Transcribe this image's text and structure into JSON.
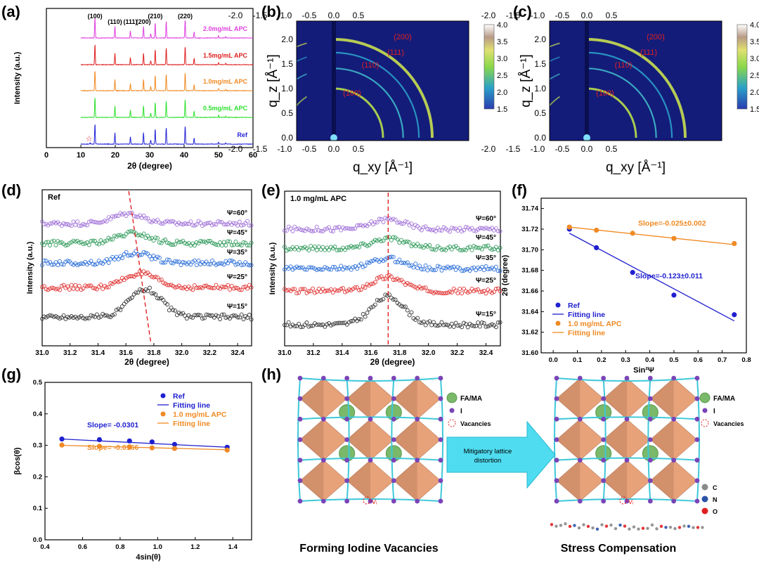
{
  "panel_labels": {
    "a": "(a)",
    "b": "(b)",
    "c": "(c)",
    "d": "(d)",
    "e": "(e)",
    "f": "(f)",
    "g": "(g)",
    "h": "(h)"
  },
  "chart_data": [
    {
      "panel": "a",
      "type": "line",
      "xlabel": "2θ (degree)",
      "ylabel": "Intensity (a.u.)",
      "xlim": [
        0,
        60
      ],
      "xticks": [
        0,
        10,
        20,
        30,
        40,
        50,
        60
      ],
      "peak_labels": [
        {
          "x": 14.1,
          "label": "(100)"
        },
        {
          "x": 19.9,
          "label": "(110)"
        },
        {
          "x": 24.4,
          "label": "(111)"
        },
        {
          "x": 28.2,
          "label": "(200)"
        },
        {
          "x": 31.6,
          "label": "(210)"
        },
        {
          "x": 40.3,
          "label": "(220)"
        }
      ],
      "peaks": [
        {
          "x": 12.7,
          "h": 0.08
        },
        {
          "x": 14.1,
          "h": 1.0
        },
        {
          "x": 19.9,
          "h": 0.55
        },
        {
          "x": 24.4,
          "h": 0.35
        },
        {
          "x": 28.2,
          "h": 0.55
        },
        {
          "x": 30.3,
          "h": 0.2
        },
        {
          "x": 31.6,
          "h": 0.75
        },
        {
          "x": 34.8,
          "h": 0.8
        },
        {
          "x": 40.3,
          "h": 0.9
        },
        {
          "x": 42.9,
          "h": 0.3
        },
        {
          "x": 50.0,
          "h": 0.1
        },
        {
          "x": 52.1,
          "h": 0.06
        }
      ],
      "star_annotation": {
        "x": 12.7,
        "label": "☆"
      },
      "series": [
        {
          "name": "Ref",
          "color": "#2424d8"
        },
        {
          "name": "0.5mg/mL APC",
          "color": "#2ee02e"
        },
        {
          "name": "1.0mg/mL APC",
          "color": "#f08a24"
        },
        {
          "name": "1.5mg/mL APC",
          "color": "#e02020"
        },
        {
          "name": "2.0mg/mL APC",
          "color": "#e040e0"
        }
      ]
    },
    {
      "panel": "b",
      "type": "heatmap",
      "xlabel": "q_xy [Å⁻¹]",
      "ylabel": "q_z [Å⁻¹]",
      "xticks": [
        "0.5",
        "0.0",
        "-0.5",
        "-1.0",
        "-1.5",
        "-2.0"
      ],
      "yticks": [
        "0.0",
        "0.5",
        "1.0",
        "1.5",
        "2.0"
      ],
      "colorbar": [
        "4.0",
        "3.5",
        "3.0",
        "2.5",
        "2.0",
        "1.5"
      ],
      "ring_labels": [
        "(100)",
        "(110)",
        "(111)",
        "(200)"
      ],
      "rings_q": [
        1.0,
        1.41,
        1.73,
        2.0
      ]
    },
    {
      "panel": "c",
      "type": "heatmap",
      "xlabel": "q_xy [Å⁻¹]",
      "ylabel": "q_z [Å⁻¹]",
      "xticks": [
        "0.5",
        "0.0",
        "-0.5",
        "-1.0",
        "-1.5",
        "-2.0"
      ],
      "yticks": [
        "0.0",
        "0.5",
        "1.0",
        "1.5",
        "2.0"
      ],
      "colorbar": [
        "4.0",
        "3.5",
        "3.0",
        "2.5",
        "2.0",
        "1.5"
      ],
      "ring_labels": [
        "(100)",
        "(110)",
        "(111)",
        "(200)"
      ],
      "rings_q": [
        1.0,
        1.41,
        1.73,
        2.0
      ]
    },
    {
      "panel": "d",
      "type": "scatter",
      "title": "Ref",
      "xlabel": "2θ (degree)",
      "ylabel": "Intensity (a.u.)",
      "xlim": [
        31.0,
        32.5
      ],
      "xticks": [
        "31.0",
        "31.2",
        "31.4",
        "31.6",
        "31.8",
        "32.0",
        "32.2",
        "32.4"
      ],
      "series": [
        {
          "name": "Ψ=15°",
          "color": "#333333",
          "center": 31.74
        },
        {
          "name": "Ψ=25°",
          "color": "#e03030",
          "center": 31.7
        },
        {
          "name": "Ψ=35°",
          "color": "#2a6ed8",
          "center": 31.67
        },
        {
          "name": "Ψ=45°",
          "color": "#2e9a5a",
          "center": 31.65
        },
        {
          "name": "Ψ=60°",
          "color": "#a070d8",
          "center": 31.62
        }
      ],
      "guide_line": {
        "x_top": 31.62,
        "x_bottom": 31.78
      }
    },
    {
      "panel": "e",
      "type": "scatter",
      "title": "1.0 mg/mL APC",
      "xlabel": "2θ (degree)",
      "ylabel": "Intensity (a.u.)",
      "xlim": [
        31.0,
        32.5
      ],
      "xticks": [
        "31.0",
        "31.2",
        "31.4",
        "31.6",
        "31.8",
        "32.0",
        "32.2",
        "32.4"
      ],
      "series": [
        {
          "name": "Ψ=15°",
          "color": "#333333",
          "center": 31.72
        },
        {
          "name": "Ψ=25°",
          "color": "#e03030",
          "center": 31.72
        },
        {
          "name": "Ψ=35°",
          "color": "#2a6ed8",
          "center": 31.72
        },
        {
          "name": "Ψ=45°",
          "color": "#2e9a5a",
          "center": 31.72
        },
        {
          "name": "Ψ=60°",
          "color": "#a070d8",
          "center": 31.72
        }
      ],
      "guide_line": {
        "x_top": 31.72,
        "x_bottom": 31.72
      }
    },
    {
      "panel": "f",
      "type": "scatter",
      "xlabel": "Sin²Ψ",
      "ylabel": "2θ (degree)",
      "xlim": [
        -0.05,
        0.8
      ],
      "ylim": [
        31.6,
        31.75
      ],
      "xticks": [
        "0.0",
        "0.1",
        "0.2",
        "0.3",
        "0.4",
        "0.5",
        "0.6",
        "0.7",
        "0.8"
      ],
      "yticks": [
        "31.60",
        "31.62",
        "31.64",
        "31.66",
        "31.68",
        "31.70",
        "31.72",
        "31.74"
      ],
      "series": [
        {
          "name": "Ref",
          "color": "#2020d0",
          "x": [
            0.067,
            0.179,
            0.329,
            0.5,
            0.75
          ],
          "y": [
            31.72,
            31.702,
            31.678,
            31.656,
            31.637
          ],
          "fit": [
            31.716,
            31.631
          ],
          "slope_label": "Slope=-0.123±0.011"
        },
        {
          "name": "1.0 mg/mL APC",
          "color": "#f08a24",
          "x": [
            0.067,
            0.179,
            0.329,
            0.5,
            0.75
          ],
          "y": [
            31.722,
            31.719,
            31.716,
            31.711,
            31.706
          ],
          "fit": [
            31.722,
            31.705
          ],
          "slope_label": "Slope=-0.025±0.002"
        }
      ],
      "legend": [
        "Ref",
        "Fitting line",
        "1.0 mg/mL APC",
        "Fitting line"
      ]
    },
    {
      "panel": "g",
      "type": "scatter",
      "xlabel": "4sin(θ)",
      "ylabel": "βcos(θ)",
      "xlim": [
        0.4,
        1.5
      ],
      "ylim": [
        0.0,
        0.5
      ],
      "xticks": [
        "0.4",
        "0.6",
        "0.8",
        "1.0",
        "1.2",
        "1.4"
      ],
      "yticks": [
        "0.0",
        "0.1",
        "0.2",
        "0.3",
        "0.4",
        "0.5"
      ],
      "series": [
        {
          "name": "Ref",
          "color": "#2020d0",
          "x": [
            0.49,
            0.69,
            0.85,
            0.97,
            1.09,
            1.37
          ],
          "y": [
            0.32,
            0.318,
            0.314,
            0.311,
            0.303,
            0.294
          ],
          "fit": [
            0.32,
            0.294
          ],
          "slope_label": "Slope= -0.0301"
        },
        {
          "name": "1.0 mg/mL APC",
          "color": "#f08a24",
          "x": [
            0.49,
            0.69,
            0.85,
            0.97,
            1.09,
            1.37
          ],
          "y": [
            0.301,
            0.297,
            0.295,
            0.292,
            0.29,
            0.285
          ],
          "fit": [
            0.3,
            0.286
          ],
          "slope_label": "Slope= -0.0166"
        }
      ],
      "legend": [
        "Ref",
        "Fitting line",
        "1.0 mg/mL APC",
        "Fitting line"
      ]
    }
  ],
  "panel_h": {
    "left_caption": "Forming Iodine Vacancies",
    "right_caption": "Stress Compensation",
    "arrow_text": [
      "Mitigatory lattice",
      "distortion"
    ],
    "legend_left": [
      "FA/MA",
      "I",
      "Vacancies"
    ],
    "legend_right": [
      "FA/MA",
      "I",
      "Vacancies"
    ],
    "atom_legend": [
      "C",
      "N",
      "O"
    ],
    "vacancy_label": "Vᵢ",
    "colors": {
      "octahedron": "#e8a27a",
      "octahedron_dark": "#b97a58",
      "cation": "#7ab86a",
      "iodide": "#7a44b8",
      "bond": "#3ec8d8",
      "carbon": "#8a8a8a",
      "nitrogen": "#2a52a8",
      "oxygen": "#e02020"
    }
  }
}
